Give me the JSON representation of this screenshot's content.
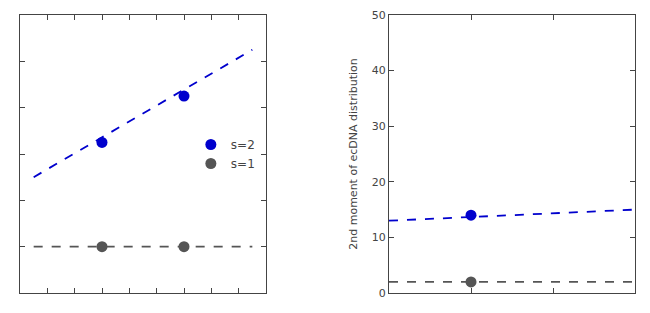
{
  "chart_data": [
    {
      "type": "scatter",
      "xlim": [
        0.0,
        0.9
      ],
      "xticks": [
        0.0,
        0.1,
        0.2,
        0.3,
        0.4,
        0.5,
        0.6,
        0.7,
        0.8,
        0.9
      ],
      "ylim": [
        0.0,
        12.0
      ],
      "yticks": [
        0,
        2,
        4,
        6,
        8,
        10,
        12
      ],
      "tick_labels": false,
      "grid": false,
      "legend": "right",
      "series": [
        {
          "type": "line",
          "line_style": "dashed",
          "color": "#0000CD",
          "x": [
            0.05,
            0.85
          ],
          "values": [
            5.0,
            10.5
          ]
        },
        {
          "type": "line",
          "line_style": "dashed",
          "color": "#555555",
          "x": [
            0.05,
            0.85
          ],
          "values": [
            2.0,
            2.0
          ]
        },
        {
          "name": "s=2",
          "type": "scatter",
          "marker": "circle",
          "color": "#0000CD",
          "x": [
            0.3,
            0.6
          ],
          "values": [
            6.5,
            8.5
          ]
        },
        {
          "name": "s=1",
          "type": "scatter",
          "marker": "circle",
          "color": "#555555",
          "x": [
            0.3,
            0.6
          ],
          "values": [
            2.0,
            2.0
          ]
        }
      ]
    },
    {
      "type": "scatter",
      "y_label": "2nd moment of ecDNA distribution",
      "xlim": [
        0.0,
        0.15
      ],
      "xticks": [
        0,
        0.05,
        0.1,
        0.15
      ],
      "ylim": [
        0.0,
        50.0
      ],
      "yticks": [
        0,
        10,
        20,
        30,
        40,
        50
      ],
      "tick_labels": "y",
      "grid": false,
      "series": [
        {
          "type": "line",
          "line_style": "dashed",
          "color": "#0000CD",
          "x": [
            0.0,
            0.15
          ],
          "values": [
            13.0,
            15.0
          ]
        },
        {
          "type": "line",
          "line_style": "dashed",
          "color": "#555555",
          "x": [
            0.0,
            0.15
          ],
          "values": [
            2.0,
            2.0
          ]
        },
        {
          "type": "scatter",
          "marker": "circle",
          "color": "#0000CD",
          "x": [
            0.05
          ],
          "values": [
            14.0
          ]
        },
        {
          "type": "scatter",
          "marker": "circle",
          "color": "#555555",
          "x": [
            0.05
          ],
          "values": [
            2.0
          ]
        }
      ]
    }
  ]
}
